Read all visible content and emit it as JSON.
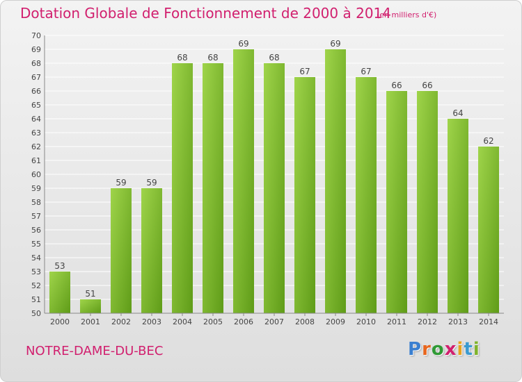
{
  "title": "Dotation Globale de Fonctionnement de 2000 à 2014",
  "subtitle": "(en milliers d'€)",
  "commune": "NOTRE-DAME-DU-BEC",
  "brand": {
    "letters": [
      "P",
      "r",
      "o",
      "x",
      "i",
      "t",
      "i"
    ],
    "colors": [
      "#3a7fd0",
      "#e8661e",
      "#2f9a35",
      "#d11f6e",
      "#e8a31e",
      "#3a9ad0",
      "#7fb32c"
    ]
  },
  "colors": {
    "accent": "#d11f6e",
    "bar_light": "#9fd44a",
    "bar_dark": "#5f9c18"
  },
  "chart_data": {
    "type": "bar",
    "categories": [
      "2000",
      "2001",
      "2002",
      "2003",
      "2004",
      "2005",
      "2006",
      "2007",
      "2008",
      "2009",
      "2010",
      "2011",
      "2012",
      "2013",
      "2014"
    ],
    "values": [
      53,
      51,
      59,
      59,
      68,
      68,
      69,
      68,
      67,
      69,
      67,
      66,
      66,
      64,
      62
    ],
    "ylim": [
      50,
      70
    ],
    "yticks": [
      50,
      51,
      52,
      53,
      54,
      55,
      56,
      57,
      58,
      59,
      60,
      61,
      62,
      63,
      64,
      65,
      66,
      67,
      68,
      69,
      70
    ],
    "grid": true,
    "xlabel": "",
    "ylabel": ""
  }
}
